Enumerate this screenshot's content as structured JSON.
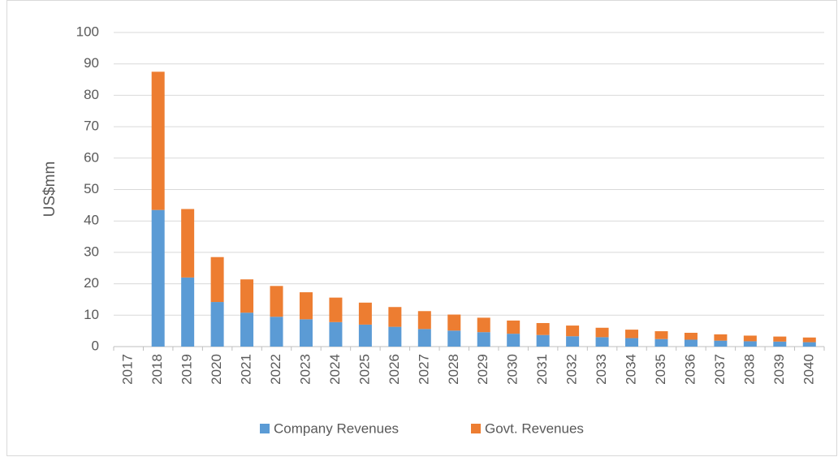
{
  "chart_data": {
    "type": "stacked_bar",
    "y_label": "US$mm",
    "categories": [
      "2017",
      "2018",
      "2019",
      "2020",
      "2021",
      "2022",
      "2023",
      "2024",
      "2025",
      "2026",
      "2027",
      "2028",
      "2029",
      "2030",
      "2031",
      "2032",
      "2033",
      "2034",
      "2035",
      "2036",
      "2037",
      "2038",
      "2039",
      "2040"
    ],
    "series": [
      {
        "name": "Company Revenues",
        "color": "#5b9bd5",
        "values": [
          0,
          43.5,
          22,
          14.2,
          10.8,
          9.5,
          8.7,
          7.8,
          7.0,
          6.3,
          5.6,
          5.1,
          4.6,
          4.1,
          3.7,
          3.3,
          3.0,
          2.7,
          2.4,
          2.2,
          1.9,
          1.7,
          1.6,
          1.4
        ]
      },
      {
        "name": "Govt. Revenues",
        "color": "#ed7d31",
        "values": [
          0,
          44,
          21.8,
          14.3,
          10.6,
          9.8,
          8.6,
          7.8,
          7.0,
          6.3,
          5.7,
          5.1,
          4.6,
          4.2,
          3.8,
          3.4,
          3.0,
          2.7,
          2.5,
          2.2,
          2.0,
          1.8,
          1.6,
          1.5
        ]
      }
    ],
    "ylim": [
      0,
      100
    ],
    "yticks": [
      0,
      10,
      20,
      30,
      40,
      50,
      60,
      70,
      80,
      90,
      100
    ],
    "grid": true,
    "legend": "bottom"
  }
}
